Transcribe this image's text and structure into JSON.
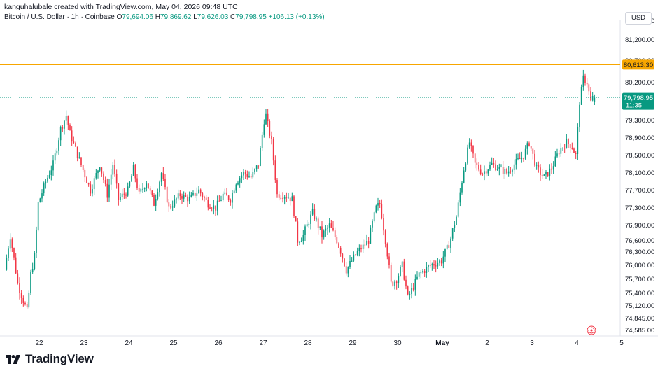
{
  "header": {
    "credit": "kanguhalubale created with TradingView.com, May 04, 2026 09:48 UTC",
    "symbol": "Bitcoin / U.S. Dollar · 1h · Coinbase",
    "open_label": "O",
    "open": "79,694.06",
    "high_label": "H",
    "high": "79,869.62",
    "low_label": "L",
    "low": "79,626.03",
    "close_label": "C",
    "close": "79,798.95",
    "change": "+106.13 (+0.13%)",
    "currency": "USD"
  },
  "branding": {
    "logo_icon": "tradingview-logo-icon",
    "text": "TradingView"
  },
  "colors": {
    "up": "#089981",
    "down": "#f23645",
    "level_line": "#f7a600",
    "price_tag": "#089981"
  },
  "chart_data": {
    "type": "candlestick",
    "x_ticks": [
      "22",
      "23",
      "24",
      "25",
      "26",
      "27",
      "28",
      "29",
      "30",
      "May",
      "2",
      "3",
      "4",
      "5"
    ],
    "y_ticks": [
      "81,600.00",
      "81,200.00",
      "80,700.00",
      "80,200.00",
      "79,700.00",
      "79,300.00",
      "78,900.00",
      "78,500.00",
      "78,100.00",
      "77,700.00",
      "77,300.00",
      "76,900.00",
      "76,600.00",
      "76,300.00",
      "76,000.00",
      "75,700.00",
      "75,400.00",
      "75,120.00",
      "74,845.00",
      "74,585.00"
    ],
    "price_level": {
      "value": 80613.3,
      "label": "80,613.30"
    },
    "current_price": {
      "value": 79798.95,
      "label": "79,798.95",
      "countdown": "11:35"
    },
    "anchors": [
      [
        "2026-04-21T06:00",
        75900
      ],
      [
        "2026-04-21T09:00",
        76700
      ],
      [
        "2026-04-21T13:00",
        75600
      ],
      [
        "2026-04-21T18:00",
        75000
      ],
      [
        "2026-04-21T20:00",
        75800
      ],
      [
        "2026-04-21T22:00",
        76200
      ],
      [
        "2026-04-22T00:00",
        77400
      ],
      [
        "2026-04-22T04:00",
        77900
      ],
      [
        "2026-04-22T08:00",
        78300
      ],
      [
        "2026-04-22T12:00",
        79100
      ],
      [
        "2026-04-22T15:00",
        79400
      ],
      [
        "2026-04-22T17:00",
        79000
      ],
      [
        "2026-04-22T22:00",
        78400
      ],
      [
        "2026-04-23T04:00",
        77700
      ],
      [
        "2026-04-23T09:00",
        78300
      ],
      [
        "2026-04-23T13:00",
        77600
      ],
      [
        "2026-04-23T16:00",
        78300
      ],
      [
        "2026-04-23T19:00",
        77500
      ],
      [
        "2026-04-24T00:00",
        77700
      ],
      [
        "2026-04-24T03:00",
        78200
      ],
      [
        "2026-04-24T06:00",
        77600
      ],
      [
        "2026-04-24T10:00",
        77900
      ],
      [
        "2026-04-24T14:00",
        77400
      ],
      [
        "2026-04-24T18:00",
        78100
      ],
      [
        "2026-04-24T22:00",
        77300
      ],
      [
        "2026-04-25T04:00",
        77600
      ],
      [
        "2026-04-25T09:00",
        77500
      ],
      [
        "2026-04-25T14:00",
        77700
      ],
      [
        "2026-04-25T19:00",
        77400
      ],
      [
        "2026-04-25T23:00",
        77300
      ],
      [
        "2026-04-26T03:00",
        77600
      ],
      [
        "2026-04-26T07:00",
        77500
      ],
      [
        "2026-04-26T10:00",
        77900
      ],
      [
        "2026-04-26T14:00",
        78100
      ],
      [
        "2026-04-26T18:00",
        78000
      ],
      [
        "2026-04-26T22:00",
        78300
      ],
      [
        "2026-04-27T01:00",
        79300
      ],
      [
        "2026-04-27T02:00",
        79400
      ],
      [
        "2026-04-27T05:00",
        78800
      ],
      [
        "2026-04-27T08:00",
        77600
      ],
      [
        "2026-04-27T12:00",
        77600
      ],
      [
        "2026-04-27T16:00",
        77500
      ],
      [
        "2026-04-27T19:00",
        76600
      ],
      [
        "2026-04-27T22:00",
        76700
      ],
      [
        "2026-04-28T03:00",
        77200
      ],
      [
        "2026-04-28T08:00",
        76700
      ],
      [
        "2026-04-28T12:00",
        76900
      ],
      [
        "2026-04-28T16:00",
        76600
      ],
      [
        "2026-04-28T21:00",
        75900
      ],
      [
        "2026-04-29T03:00",
        76300
      ],
      [
        "2026-04-29T09:00",
        76600
      ],
      [
        "2026-04-29T13:00",
        77300
      ],
      [
        "2026-04-29T15:00",
        77400
      ],
      [
        "2026-04-29T18:00",
        76600
      ],
      [
        "2026-04-29T21:00",
        75600
      ],
      [
        "2026-04-30T00:00",
        75700
      ],
      [
        "2026-04-30T03:00",
        76000
      ],
      [
        "2026-04-30T06:00",
        75300
      ],
      [
        "2026-04-30T12:00",
        75800
      ],
      [
        "2026-04-30T18:00",
        76000
      ],
      [
        "2026-05-01T00:00",
        76100
      ],
      [
        "2026-05-01T04:00",
        76500
      ],
      [
        "2026-05-01T08:00",
        77100
      ],
      [
        "2026-05-01T12:00",
        78200
      ],
      [
        "2026-05-01T15:00",
        78800
      ],
      [
        "2026-05-01T18:00",
        78300
      ],
      [
        "2026-05-01T22:00",
        78100
      ],
      [
        "2026-05-02T03:00",
        78300
      ],
      [
        "2026-05-02T07:00",
        78200
      ],
      [
        "2026-05-02T11:00",
        78100
      ],
      [
        "2026-05-02T15:00",
        78300
      ],
      [
        "2026-05-02T20:00",
        78500
      ],
      [
        "2026-05-02T23:00",
        78800
      ],
      [
        "2026-05-03T03:00",
        78200
      ],
      [
        "2026-05-03T07:00",
        78000
      ],
      [
        "2026-05-03T11:00",
        78200
      ],
      [
        "2026-05-03T15:00",
        78600
      ],
      [
        "2026-05-03T19:00",
        78800
      ],
      [
        "2026-05-03T22:00",
        78700
      ],
      [
        "2026-05-04T00:00",
        78500
      ],
      [
        "2026-05-04T02:00",
        79700
      ],
      [
        "2026-05-04T04:00",
        80300
      ],
      [
        "2026-05-04T06:00",
        80200
      ],
      [
        "2026-05-04T08:00",
        79700
      ],
      [
        "2026-05-04T09:00",
        79799
      ]
    ]
  }
}
